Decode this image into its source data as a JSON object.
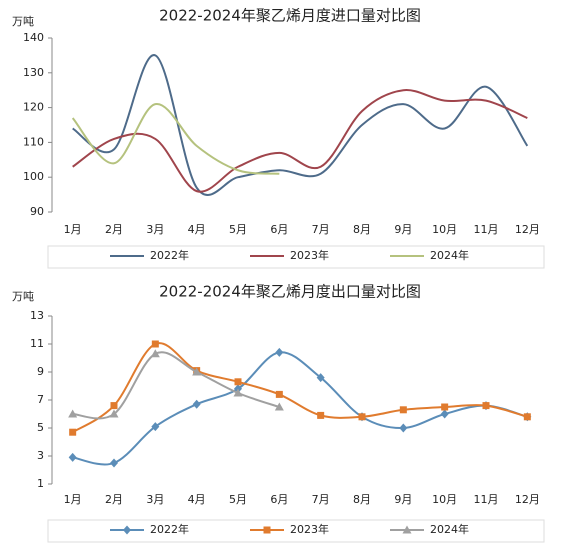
{
  "chart_data": [
    {
      "type": "line",
      "title": "2022-2024年聚乙烯月度进口量对比图",
      "y_label": "万吨",
      "categories": [
        "1月",
        "2月",
        "3月",
        "4月",
        "5月",
        "6月",
        "7月",
        "8月",
        "9月",
        "10月",
        "11月",
        "12月"
      ],
      "ylim": [
        90,
        140
      ],
      "yticks": [
        90,
        100,
        110,
        120,
        130,
        140
      ],
      "grid": false,
      "smooth": true,
      "markers": false,
      "legend": "bottom",
      "series": [
        {
          "name": "2022年",
          "color": "#4e6b8a",
          "values": [
            114,
            108,
            135,
            97,
            100,
            102,
            101,
            115,
            121,
            114,
            126,
            109
          ]
        },
        {
          "name": "2023年",
          "color": "#a0454c",
          "values": [
            103,
            111,
            111,
            96,
            103,
            107,
            103,
            119,
            125,
            122,
            122,
            117
          ]
        },
        {
          "name": "2024年",
          "color": "#b5c27e",
          "values": [
            117,
            104,
            121,
            109,
            102,
            101,
            null,
            null,
            null,
            null,
            null,
            null
          ]
        }
      ]
    },
    {
      "type": "line",
      "title": "2022-2024年聚乙烯月度出口量对比图",
      "y_label": "万吨",
      "categories": [
        "1月",
        "2月",
        "3月",
        "4月",
        "5月",
        "6月",
        "7月",
        "8月",
        "9月",
        "10月",
        "11月",
        "12月"
      ],
      "ylim": [
        1,
        13
      ],
      "yticks": [
        1,
        3,
        5,
        7,
        9,
        11,
        13
      ],
      "grid": false,
      "smooth": true,
      "markers": true,
      "legend": "bottom",
      "series": [
        {
          "name": "2022年",
          "color": "#5b8db8",
          "marker": "diamond",
          "values": [
            2.9,
            2.5,
            5.1,
            6.7,
            7.8,
            10.4,
            8.6,
            5.8,
            5.0,
            6.0,
            6.6,
            5.8
          ]
        },
        {
          "name": "2023年",
          "color": "#e07b2e",
          "marker": "square",
          "values": [
            4.7,
            6.6,
            11.0,
            9.1,
            8.3,
            7.4,
            5.9,
            5.8,
            6.3,
            6.5,
            6.6,
            5.8
          ]
        },
        {
          "name": "2024年",
          "color": "#a0a0a0",
          "marker": "triangle",
          "values": [
            6.0,
            6.0,
            10.3,
            9.0,
            7.5,
            6.5,
            null,
            null,
            null,
            null,
            null,
            null
          ]
        }
      ]
    }
  ]
}
